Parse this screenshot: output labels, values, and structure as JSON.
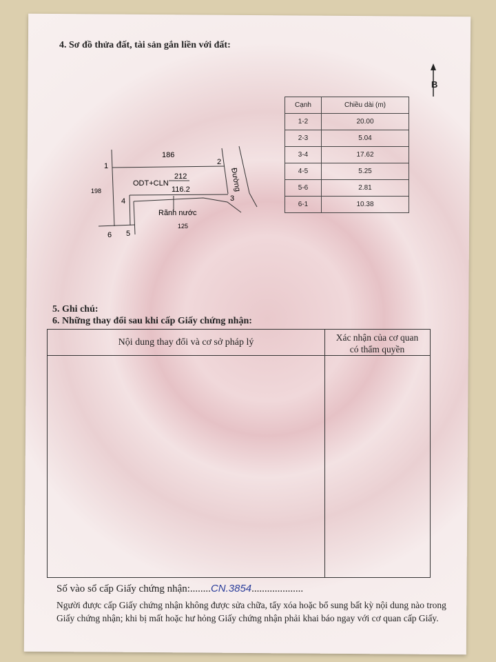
{
  "section4": {
    "title": "4. Sơ đồ thửa đất, tài sản gắn liền với đất:"
  },
  "north_label": "B",
  "diagram": {
    "top_neighbor": "186",
    "left_neighbor": "198",
    "bottom_neighbor": "125",
    "parcel_code": "ODT+CLN",
    "parcel_number": "212",
    "area": "116.2",
    "road": "Đường",
    "drain": "Rãnh nước",
    "points": [
      "1",
      "2",
      "3",
      "4",
      "5",
      "6"
    ]
  },
  "lengths_table": {
    "headers": [
      "Cạnh",
      "Chiều dài (m)"
    ],
    "rows": [
      [
        "1-2",
        "20.00"
      ],
      [
        "2-3",
        "5.04"
      ],
      [
        "3-4",
        "17.62"
      ],
      [
        "4-5",
        "5.25"
      ],
      [
        "5-6",
        "2.81"
      ],
      [
        "6-1",
        "10.38"
      ]
    ]
  },
  "section5": {
    "title": "5. Ghi chú:"
  },
  "section6": {
    "title": "6. Những thay đổi sau khi cấp Giấy chứng nhận:",
    "col1": "Nội dung thay đổi và cơ sở pháp lý",
    "col2_line1": "Xác nhận của cơ quan",
    "col2_line2": "có thẩm quyền"
  },
  "registry": {
    "label": "Số vào sổ cấp Giấy chứng nhận:........",
    "value": "CN.3854",
    "dots": "...................."
  },
  "notice": {
    "line1": "Người được cấp Giấy chứng nhận không được sửa chữa, tẩy xóa hoặc bổ sung bất kỳ nội dung nào trong",
    "line2": "Giấy chứng nhận; khi bị mất hoặc hư hỏng Giấy chứng nhận phải khai báo ngay với cơ quan cấp Giấy."
  }
}
